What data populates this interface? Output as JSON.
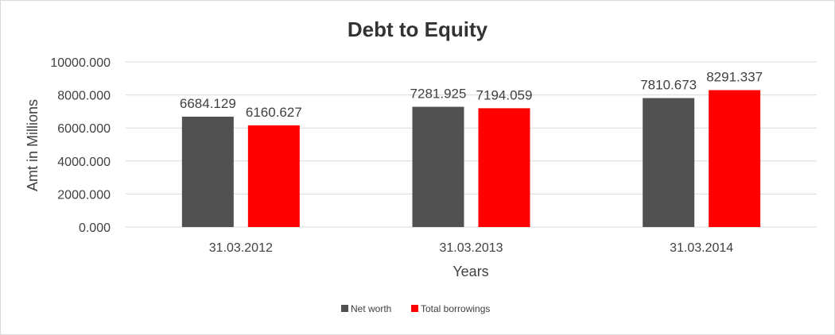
{
  "chart_data": {
    "type": "bar",
    "title": "Debt to Equity",
    "xlabel": "Years",
    "ylabel": "Amt in Millions",
    "categories": [
      "31.03.2012",
      "31.03.2013",
      "31.03.2014"
    ],
    "series": [
      {
        "name": "Net worth",
        "color": "#515151",
        "values": [
          6684.129,
          7281.925,
          7810.673
        ]
      },
      {
        "name": "Total borrowings",
        "color": "#ff0000",
        "values": [
          6160.627,
          7194.059,
          8291.337
        ]
      }
    ],
    "ylim": [
      0,
      10000
    ],
    "yticks": [
      "0.000",
      "2000.000",
      "4000.000",
      "6000.000",
      "8000.000",
      "10000.000"
    ],
    "data_labels": [
      [
        "6684.129",
        "7281.925",
        "7810.673"
      ],
      [
        "6160.627",
        "7194.059",
        "8291.337"
      ]
    ],
    "grid": true,
    "legend_position": "bottom"
  }
}
